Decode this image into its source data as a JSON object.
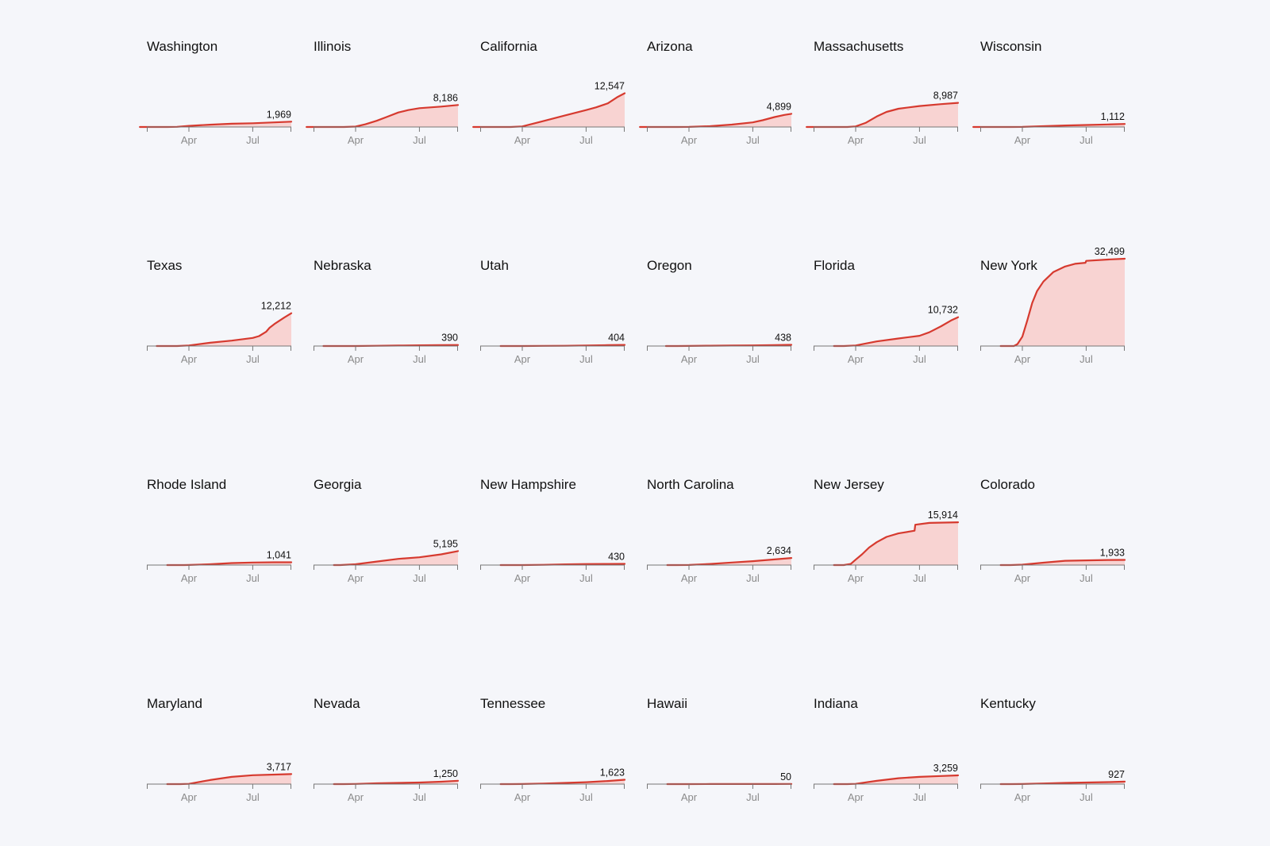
{
  "colors": {
    "line": "#d63a2f",
    "area": "#f8d3d2",
    "axis": "#777777",
    "tick_text": "#8a8a8a",
    "background": "#f5f6fa"
  },
  "chart_data": {
    "type": "area",
    "layout": "small multiples, 6 columns x 4 rows",
    "x_ticks": [
      "Apr",
      "Jul"
    ],
    "ylim": [
      0,
      32499
    ],
    "panels": [
      {
        "name": "Washington",
        "final_value": 1969,
        "label": "1,969",
        "x": [
          "2020-01-22",
          "2020-03-01",
          "2020-03-15",
          "2020-04-01",
          "2020-05-01",
          "2020-06-01",
          "2020-07-01",
          "2020-08-01",
          "2020-08-25"
        ],
        "y": [
          0,
          0,
          50,
          400,
          850,
          1200,
          1400,
          1700,
          1969
        ]
      },
      {
        "name": "Illinois",
        "final_value": 8186,
        "label": "8,186",
        "x": [
          "2020-01-22",
          "2020-03-15",
          "2020-04-01",
          "2020-04-15",
          "2020-05-01",
          "2020-05-15",
          "2020-06-01",
          "2020-06-15",
          "2020-07-01",
          "2020-08-01",
          "2020-08-25"
        ],
        "y": [
          0,
          0,
          150,
          1000,
          2300,
          3700,
          5400,
          6300,
          7000,
          7600,
          8186
        ]
      },
      {
        "name": "California",
        "final_value": 12547,
        "label": "12,547",
        "x": [
          "2020-01-22",
          "2020-03-15",
          "2020-04-01",
          "2020-05-01",
          "2020-06-01",
          "2020-07-01",
          "2020-07-15",
          "2020-08-01",
          "2020-08-15",
          "2020-08-25"
        ],
        "y": [
          0,
          0,
          200,
          2200,
          4300,
          6300,
          7300,
          8800,
          11200,
          12547
        ]
      },
      {
        "name": "Arizona",
        "final_value": 4899,
        "label": "4,899",
        "x": [
          "2020-01-22",
          "2020-03-15",
          "2020-04-01",
          "2020-05-01",
          "2020-06-01",
          "2020-07-01",
          "2020-07-15",
          "2020-08-01",
          "2020-08-15",
          "2020-08-25"
        ],
        "y": [
          0,
          0,
          30,
          300,
          900,
          1700,
          2500,
          3700,
          4500,
          4899
        ]
      },
      {
        "name": "Massachusetts",
        "final_value": 8987,
        "label": "8,987",
        "x": [
          "2020-01-22",
          "2020-03-20",
          "2020-04-01",
          "2020-04-15",
          "2020-05-01",
          "2020-05-15",
          "2020-06-01",
          "2020-07-01",
          "2020-08-01",
          "2020-08-25"
        ],
        "y": [
          0,
          0,
          200,
          1500,
          3900,
          5600,
          6800,
          7800,
          8500,
          8987
        ]
      },
      {
        "name": "Wisconsin",
        "final_value": 1112,
        "label": "1,112",
        "x": [
          "2020-01-22",
          "2020-03-15",
          "2020-04-01",
          "2020-05-01",
          "2020-06-01",
          "2020-07-01",
          "2020-08-01",
          "2020-08-25"
        ],
        "y": [
          0,
          0,
          40,
          300,
          550,
          750,
          950,
          1112
        ]
      },
      {
        "name": "Texas",
        "final_value": 12212,
        "label": "12,212",
        "x": [
          "2020-02-15",
          "2020-03-15",
          "2020-04-01",
          "2020-05-01",
          "2020-06-01",
          "2020-07-01",
          "2020-07-10",
          "2020-07-20",
          "2020-07-25",
          "2020-08-01",
          "2020-08-15",
          "2020-08-25"
        ],
        "y": [
          0,
          0,
          200,
          1200,
          2000,
          3000,
          3700,
          5300,
          6800,
          8200,
          10600,
          12212
        ]
      },
      {
        "name": "Nebraska",
        "final_value": 390,
        "label": "390",
        "x": [
          "2020-02-15",
          "2020-03-15",
          "2020-04-01",
          "2020-05-01",
          "2020-06-01",
          "2020-07-01",
          "2020-08-01",
          "2020-08-25"
        ],
        "y": [
          0,
          0,
          10,
          80,
          180,
          280,
          350,
          390
        ]
      },
      {
        "name": "Utah",
        "final_value": 404,
        "label": "404",
        "x": [
          "2020-03-01",
          "2020-03-15",
          "2020-04-01",
          "2020-05-01",
          "2020-06-01",
          "2020-07-01",
          "2020-08-01",
          "2020-08-25"
        ],
        "y": [
          0,
          0,
          10,
          50,
          100,
          200,
          330,
          404
        ]
      },
      {
        "name": "Oregon",
        "final_value": 438,
        "label": "438",
        "x": [
          "2020-02-28",
          "2020-03-15",
          "2020-04-01",
          "2020-05-01",
          "2020-06-01",
          "2020-07-01",
          "2020-08-01",
          "2020-08-25"
        ],
        "y": [
          0,
          0,
          20,
          110,
          170,
          250,
          350,
          438
        ]
      },
      {
        "name": "Florida",
        "final_value": 10732,
        "label": "10,732",
        "x": [
          "2020-03-01",
          "2020-03-15",
          "2020-04-01",
          "2020-05-01",
          "2020-06-01",
          "2020-07-01",
          "2020-07-15",
          "2020-08-01",
          "2020-08-15",
          "2020-08-25"
        ],
        "y": [
          0,
          0,
          200,
          1700,
          2800,
          3800,
          5100,
          7400,
          9500,
          10732
        ]
      },
      {
        "name": "New York",
        "final_value": 32499,
        "label": "32,499",
        "x": [
          "2020-03-01",
          "2020-03-20",
          "2020-03-25",
          "2020-04-01",
          "2020-04-08",
          "2020-04-15",
          "2020-04-22",
          "2020-05-01",
          "2020-05-15",
          "2020-06-01",
          "2020-06-15",
          "2020-06-30",
          "2020-07-01",
          "2020-08-01",
          "2020-08-25"
        ],
        "y": [
          0,
          0,
          700,
          3500,
          9500,
          16000,
          20500,
          24000,
          27500,
          29600,
          30600,
          31000,
          31700,
          32200,
          32499
        ]
      },
      {
        "name": "Rhode Island",
        "final_value": 1041,
        "label": "1,041",
        "x": [
          "2020-03-01",
          "2020-03-25",
          "2020-04-01",
          "2020-05-01",
          "2020-06-01",
          "2020-07-01",
          "2020-08-01",
          "2020-08-25"
        ],
        "y": [
          0,
          0,
          30,
          300,
          750,
          950,
          1020,
          1041
        ]
      },
      {
        "name": "Georgia",
        "final_value": 5195,
        "label": "5,195",
        "x": [
          "2020-03-01",
          "2020-03-10",
          "2020-04-01",
          "2020-05-01",
          "2020-06-01",
          "2020-07-01",
          "2020-08-01",
          "2020-08-25"
        ],
        "y": [
          0,
          0,
          300,
          1300,
          2300,
          2900,
          4000,
          5195
        ]
      },
      {
        "name": "New Hampshire",
        "final_value": 430,
        "label": "430",
        "x": [
          "2020-03-01",
          "2020-03-15",
          "2020-04-01",
          "2020-05-01",
          "2020-06-01",
          "2020-07-01",
          "2020-08-01",
          "2020-08-25"
        ],
        "y": [
          0,
          0,
          10,
          90,
          270,
          380,
          420,
          430
        ]
      },
      {
        "name": "North Carolina",
        "final_value": 2634,
        "label": "2,634",
        "x": [
          "2020-03-01",
          "2020-03-15",
          "2020-04-01",
          "2020-05-01",
          "2020-06-01",
          "2020-07-01",
          "2020-08-01",
          "2020-08-25"
        ],
        "y": [
          0,
          0,
          30,
          400,
          950,
          1450,
          2100,
          2634
        ]
      },
      {
        "name": "New Jersey",
        "final_value": 15914,
        "label": "15,914",
        "x": [
          "2020-03-01",
          "2020-03-15",
          "2020-03-25",
          "2020-04-01",
          "2020-04-10",
          "2020-04-20",
          "2020-05-01",
          "2020-05-15",
          "2020-06-01",
          "2020-06-24",
          "2020-06-25",
          "2020-07-15",
          "2020-08-25"
        ],
        "y": [
          0,
          0,
          400,
          2000,
          4000,
          6500,
          8500,
          10500,
          11800,
          12800,
          15000,
          15700,
          15914
        ]
      },
      {
        "name": "Colorado",
        "final_value": 1933,
        "label": "1,933",
        "x": [
          "2020-03-01",
          "2020-03-15",
          "2020-04-01",
          "2020-05-01",
          "2020-06-01",
          "2020-07-01",
          "2020-08-01",
          "2020-08-25"
        ],
        "y": [
          0,
          0,
          150,
          900,
          1600,
          1750,
          1880,
          1933
        ]
      },
      {
        "name": "Maryland",
        "final_value": 3717,
        "label": "3,717",
        "x": [
          "2020-03-01",
          "2020-03-20",
          "2020-04-01",
          "2020-05-01",
          "2020-06-01",
          "2020-07-01",
          "2020-08-01",
          "2020-08-25"
        ],
        "y": [
          0,
          0,
          100,
          1500,
          2700,
          3300,
          3550,
          3717
        ]
      },
      {
        "name": "Nevada",
        "final_value": 1250,
        "label": "1,250",
        "x": [
          "2020-03-01",
          "2020-03-15",
          "2020-04-01",
          "2020-05-01",
          "2020-06-01",
          "2020-07-01",
          "2020-08-01",
          "2020-08-25"
        ],
        "y": [
          0,
          0,
          50,
          300,
          450,
          600,
          900,
          1250
        ]
      },
      {
        "name": "Tennessee",
        "final_value": 1623,
        "label": "1,623",
        "x": [
          "2020-03-01",
          "2020-03-15",
          "2020-04-01",
          "2020-05-01",
          "2020-06-01",
          "2020-07-01",
          "2020-08-01",
          "2020-08-25"
        ],
        "y": [
          0,
          0,
          20,
          200,
          450,
          700,
          1150,
          1623
        ]
      },
      {
        "name": "Hawaii",
        "final_value": 50,
        "label": "50",
        "x": [
          "2020-03-01",
          "2020-03-15",
          "2020-04-01",
          "2020-05-01",
          "2020-06-01",
          "2020-07-01",
          "2020-08-01",
          "2020-08-25"
        ],
        "y": [
          0,
          0,
          5,
          17,
          17,
          19,
          30,
          50
        ]
      },
      {
        "name": "Indiana",
        "final_value": 3259,
        "label": "3,259",
        "x": [
          "2020-03-01",
          "2020-03-20",
          "2020-04-01",
          "2020-05-01",
          "2020-06-01",
          "2020-07-01",
          "2020-08-01",
          "2020-08-25"
        ],
        "y": [
          0,
          0,
          100,
          1200,
          2200,
          2700,
          3000,
          3259
        ]
      },
      {
        "name": "Kentucky",
        "final_value": 927,
        "label": "927",
        "x": [
          "2020-03-01",
          "2020-03-15",
          "2020-04-01",
          "2020-05-01",
          "2020-06-01",
          "2020-07-01",
          "2020-08-01",
          "2020-08-25"
        ],
        "y": [
          0,
          0,
          30,
          250,
          450,
          600,
          750,
          927
        ]
      }
    ]
  }
}
